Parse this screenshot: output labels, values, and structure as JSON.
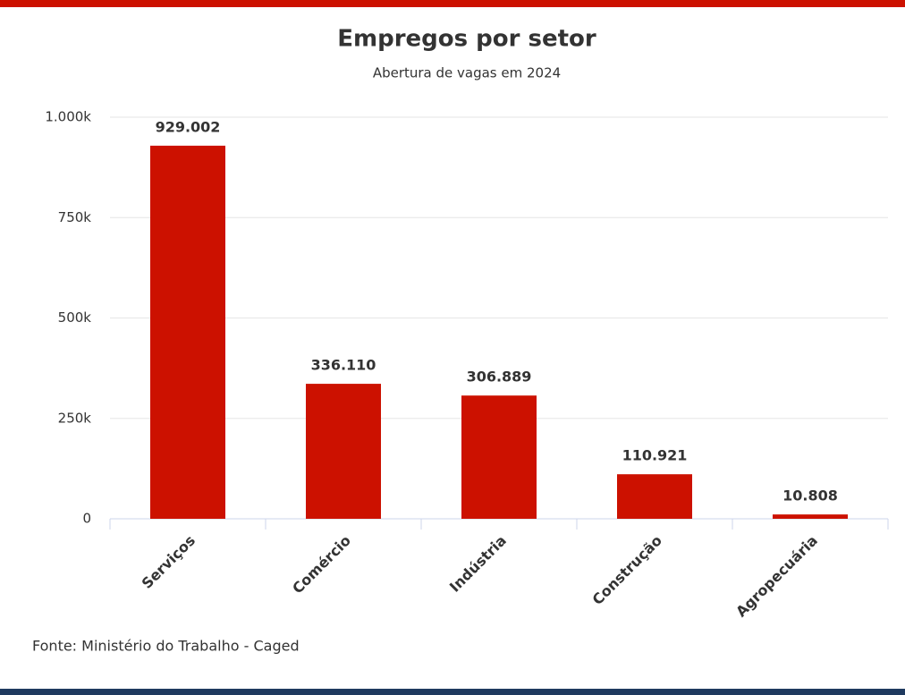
{
  "chart_data": {
    "type": "bar",
    "title": "Empregos por setor",
    "subtitle": "Abertura de vagas em 2024",
    "categories": [
      "Serviços",
      "Comércio",
      "Indústria",
      "Construção",
      "Agropecuária"
    ],
    "values": [
      929002,
      336110,
      306889,
      110921,
      10808
    ],
    "value_labels": [
      "929.002",
      "336.110",
      "306.889",
      "110.921",
      "10.808"
    ],
    "color": "#cc1100",
    "ylim": [
      0,
      1000000
    ],
    "yticks": [
      0,
      {
        "value": 250000,
        "label": "250k"
      },
      {
        "value": 500000,
        "label": "500k"
      },
      {
        "value": 750000,
        "label": "750k"
      },
      {
        "value": 1000000,
        "label": "1.000k"
      }
    ],
    "grid": true,
    "source": "Fonte: Ministério do Trabalho - Caged"
  }
}
